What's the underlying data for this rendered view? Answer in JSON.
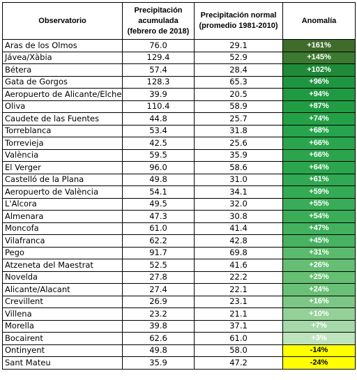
{
  "chart_data": {
    "type": "table",
    "columns": [
      "Observatorio",
      "Precipitación acumulada (febrero de 2018)",
      "Precipitación normal (promedio 1981-2010)",
      "Anomalía"
    ],
    "header_lines": [
      [
        "Observatorio"
      ],
      [
        "Precipitación",
        "acumulada",
        "(febrero de 2018)"
      ],
      [
        "Precipitación normal",
        "(promedio 1981-2010)"
      ],
      [
        "Anomalía"
      ]
    ],
    "rows": [
      {
        "observatorio": "Aras de los Olmos",
        "acumulada": "76.0",
        "normal": "29.1",
        "anomalia": "+161%",
        "color": "#3f6b2b"
      },
      {
        "observatorio": "Jávea/Xàbia",
        "acumulada": "129.4",
        "normal": "52.9",
        "anomalia": "+145%",
        "color": "#3c7a32"
      },
      {
        "observatorio": "Bétera",
        "acumulada": "57.4",
        "normal": "28.4",
        "anomalia": "+102%",
        "color": "#1f8a38"
      },
      {
        "observatorio": "Gata de Gorgos",
        "acumulada": "128.3",
        "normal": "65.3",
        "anomalia": "+96%",
        "color": "#1e9640"
      },
      {
        "observatorio": "Aeropuerto de Alicante/Elche",
        "acumulada": "39.9",
        "normal": "20.5",
        "anomalia": "+94%",
        "color": "#1f9a42"
      },
      {
        "observatorio": "Oliva",
        "acumulada": "110.4",
        "normal": "58.9",
        "anomalia": "+87%",
        "color": "#219d45"
      },
      {
        "observatorio": "Caudete de las Fuentes",
        "acumulada": "44.8",
        "normal": "25.7",
        "anomalia": "+74%",
        "color": "#24a148"
      },
      {
        "observatorio": "Torreblanca",
        "acumulada": "53.4",
        "normal": "31.8",
        "anomalia": "+68%",
        "color": "#28a44c"
      },
      {
        "observatorio": "Torrevieja",
        "acumulada": "42.5",
        "normal": "25.6",
        "anomalia": "+66%",
        "color": "#2aa54d"
      },
      {
        "observatorio": "València",
        "acumulada": "59.5",
        "normal": "35.9",
        "anomalia": "+66%",
        "color": "#2aa54d"
      },
      {
        "observatorio": "El Verger",
        "acumulada": "96.0",
        "normal": "58.6",
        "anomalia": "+64%",
        "color": "#2ca64e"
      },
      {
        "observatorio": "Castelló de la Plana",
        "acumulada": "49.8",
        "normal": "31.0",
        "anomalia": "+61%",
        "color": "#31a852"
      },
      {
        "observatorio": "Aeropuerto de València",
        "acumulada": "54.1",
        "normal": "34.1",
        "anomalia": "+59%",
        "color": "#34aa54"
      },
      {
        "observatorio": "L'Alcora",
        "acumulada": "49.5",
        "normal": "32.0",
        "anomalia": "+55%",
        "color": "#39ac57"
      },
      {
        "observatorio": "Almenara",
        "acumulada": "47.3",
        "normal": "30.8",
        "anomalia": "+54%",
        "color": "#3bad58"
      },
      {
        "observatorio": "Moncofa",
        "acumulada": "61.0",
        "normal": "41.4",
        "anomalia": "+47%",
        "color": "#44b15e"
      },
      {
        "observatorio": "Vilafranca",
        "acumulada": "62.2",
        "normal": "42.8",
        "anomalia": "+45%",
        "color": "#47b260"
      },
      {
        "observatorio": "Pego",
        "acumulada": "91.7",
        "normal": "69.8",
        "anomalia": "+31%",
        "color": "#5cba6c"
      },
      {
        "observatorio": "Atzeneta del Maestrat",
        "acumulada": "52.5",
        "normal": "41.6",
        "anomalia": "+26%",
        "color": "#65be73"
      },
      {
        "observatorio": "Novelda",
        "acumulada": "27.8",
        "normal": "22.2",
        "anomalia": "+25%",
        "color": "#67bf74"
      },
      {
        "observatorio": "Alicante/Alacant",
        "acumulada": "27.4",
        "normal": "22.1",
        "anomalia": "+24%",
        "color": "#69c076"
      },
      {
        "observatorio": "Crevillent",
        "acumulada": "26.9",
        "normal": "23.1",
        "anomalia": "+16%",
        "color": "#7cc785"
      },
      {
        "observatorio": "Villena",
        "acumulada": "23.2",
        "normal": "21.1",
        "anomalia": "+10%",
        "color": "#93d198"
      },
      {
        "observatorio": "Morella",
        "acumulada": "39.8",
        "normal": "37.1",
        "anomalia": "+7%",
        "color": "#a5d9a9"
      },
      {
        "observatorio": "Bocairent",
        "acumulada": "62.6",
        "normal": "61.0",
        "anomalia": "+3%",
        "color": "#bde3bf"
      },
      {
        "observatorio": "Ontinyent",
        "acumulada": "49.8",
        "normal": "58.0",
        "anomalia": "-14%",
        "color": "#ffff00"
      },
      {
        "observatorio": "Sant Mateu",
        "acumulada": "35.9",
        "normal": "47.2",
        "anomalia": "-24%",
        "color": "#ffff00"
      }
    ]
  }
}
